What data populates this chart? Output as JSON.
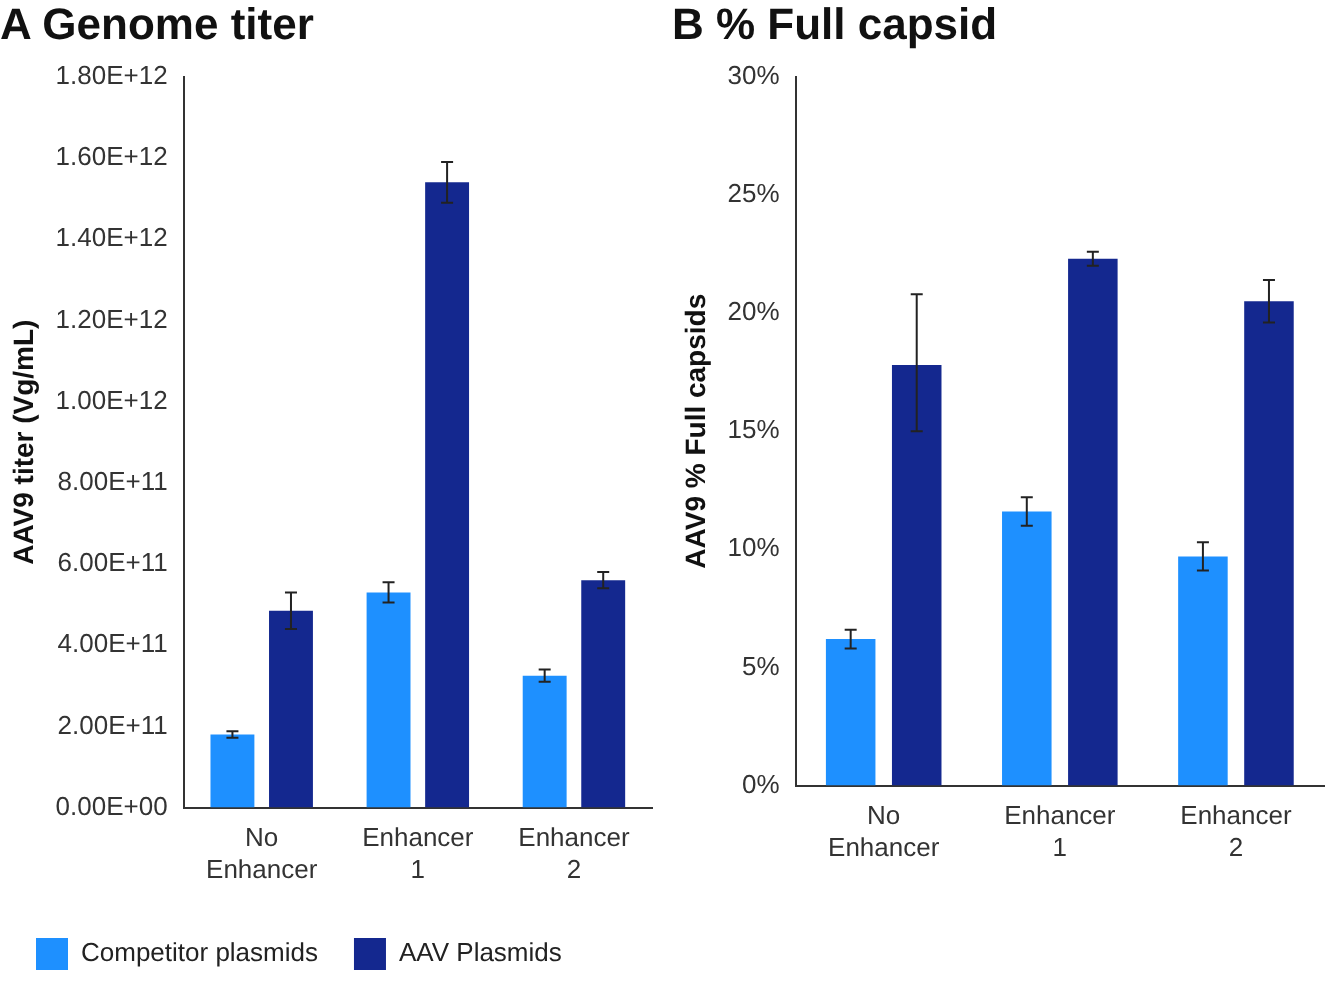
{
  "chart_data": [
    {
      "type": "bar",
      "title": "A Genome titer",
      "ylabel": "AAV9 titer (Vg/mL)",
      "categories": [
        "No Enhancer",
        "Enhancer 1",
        "Enhancer 2"
      ],
      "series": [
        {
          "name": "Competitor plasmids",
          "color": "#1e90ff",
          "values": [
            180000000000.0,
            530000000000.0,
            325000000000.0
          ],
          "errors": [
            8000000000.0,
            25000000000.0,
            15000000000.0
          ]
        },
        {
          "name": "AAV Plasmids",
          "color": "#14288f",
          "values": [
            485000000000.0,
            1540000000000.0,
            560000000000.0
          ],
          "errors": [
            45000000000.0,
            50000000000.0,
            20000000000.0
          ]
        }
      ],
      "ylim": [
        0,
        1800000000000.0
      ],
      "yticks": [
        {
          "value": 0,
          "label": "0.00E+00"
        },
        {
          "value": 200000000000.0,
          "label": "2.00E+11"
        },
        {
          "value": 400000000000.0,
          "label": "4.00E+11"
        },
        {
          "value": 600000000000.0,
          "label": "6.00E+11"
        },
        {
          "value": 800000000000.0,
          "label": "8.00E+11"
        },
        {
          "value": 1000000000000.0,
          "label": "1.00E+12"
        },
        {
          "value": 1200000000000.0,
          "label": "1.20E+12"
        },
        {
          "value": 1400000000000.0,
          "label": "1.40E+12"
        },
        {
          "value": 1600000000000.0,
          "label": "1.60E+12"
        },
        {
          "value": 1800000000000.0,
          "label": "1.80E+12"
        }
      ],
      "grid": false,
      "legend": "bottom"
    },
    {
      "type": "bar",
      "title": "B % Full capsid",
      "ylabel": "AAV9 % Full capsids",
      "categories": [
        "No Enhancer",
        "Enhancer 1",
        "Enhancer 2"
      ],
      "series": [
        {
          "color": "#1e90ff",
          "values": [
            6.2,
            11.6,
            9.7
          ],
          "errors": [
            0.4,
            0.6,
            0.6
          ]
        },
        {
          "color": "#14288f",
          "values": [
            17.8,
            22.3,
            20.5
          ],
          "errors": [
            [
              15,
              20.8
            ],
            0.3,
            0.9
          ]
        }
      ],
      "ylim": [
        0,
        30
      ],
      "yticks": [
        {
          "value": 0,
          "label": "0%"
        },
        {
          "value": 5,
          "label": "5%"
        },
        {
          "value": 10,
          "label": "10%"
        },
        {
          "value": 15,
          "label": "15%"
        },
        {
          "value": 20,
          "label": "20%"
        },
        {
          "value": 25,
          "label": "25%"
        },
        {
          "value": 30,
          "label": "30%"
        }
      ],
      "grid": false,
      "legend": false
    }
  ]
}
